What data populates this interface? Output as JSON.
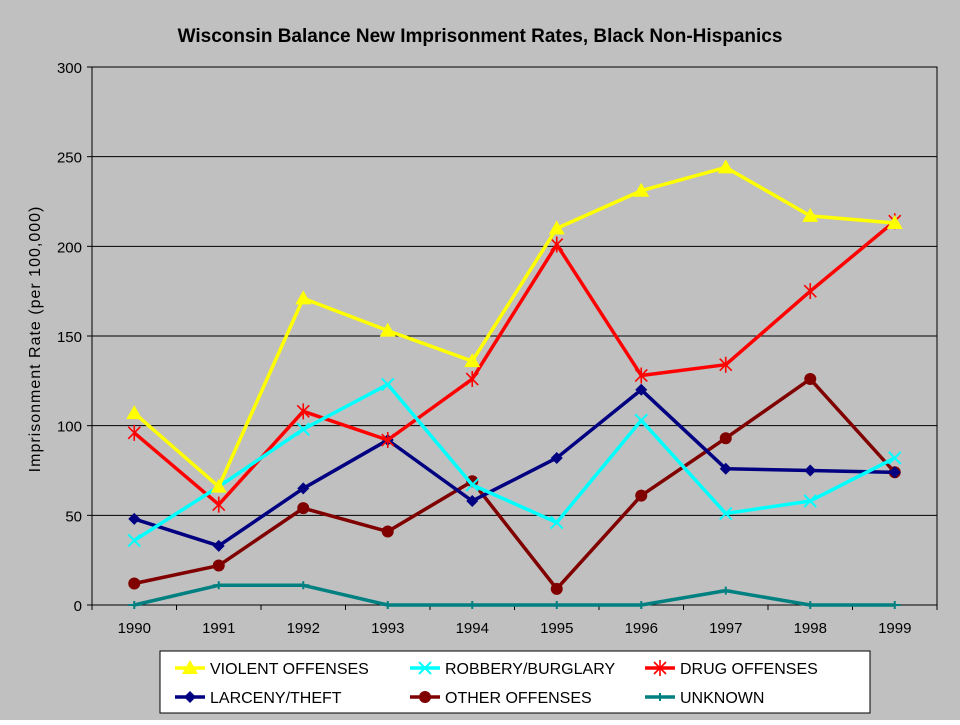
{
  "chart_data": {
    "type": "line",
    "title": "Wisconsin Balance New Imprisonment Rates, Black Non-Hispanics",
    "xlabel": "",
    "ylabel": "Imprisonment Rate (per 100,000)",
    "ylim": [
      0,
      300
    ],
    "yticks": [
      0,
      50,
      100,
      150,
      200,
      250,
      300
    ],
    "categories": [
      "1990",
      "1991",
      "1992",
      "1993",
      "1994",
      "1995",
      "1996",
      "1997",
      "1998",
      "1999"
    ],
    "grid": "horizontal",
    "legend_position": "bottom",
    "series": [
      {
        "name": "VIOLENT OFFENSES",
        "color": "#ffff00",
        "marker": "triangle",
        "values": [
          107,
          66,
          171,
          153,
          136,
          210,
          231,
          244,
          217,
          213
        ]
      },
      {
        "name": "ROBBERY/BURGLARY",
        "color": "#00ffff",
        "marker": "x",
        "values": [
          36,
          66,
          98,
          123,
          67,
          46,
          103,
          51,
          58,
          82
        ]
      },
      {
        "name": "DRUG OFFENSES",
        "color": "#ff0000",
        "marker": "star",
        "values": [
          96,
          56,
          108,
          92,
          126,
          201,
          128,
          134,
          175,
          214
        ]
      },
      {
        "name": "LARCENY/THEFT",
        "color": "#000080",
        "marker": "diamond",
        "values": [
          48,
          33,
          65,
          92,
          58,
          82,
          120,
          76,
          75,
          74
        ]
      },
      {
        "name": "OTHER OFFENSES",
        "color": "#800000",
        "marker": "circle",
        "values": [
          12,
          22,
          54,
          41,
          69,
          9,
          61,
          93,
          126,
          74
        ]
      },
      {
        "name": "UNKNOWN",
        "color": "#008080",
        "marker": "plus",
        "values": [
          0,
          11,
          11,
          0,
          0,
          0,
          0,
          8,
          0,
          0
        ]
      }
    ]
  }
}
